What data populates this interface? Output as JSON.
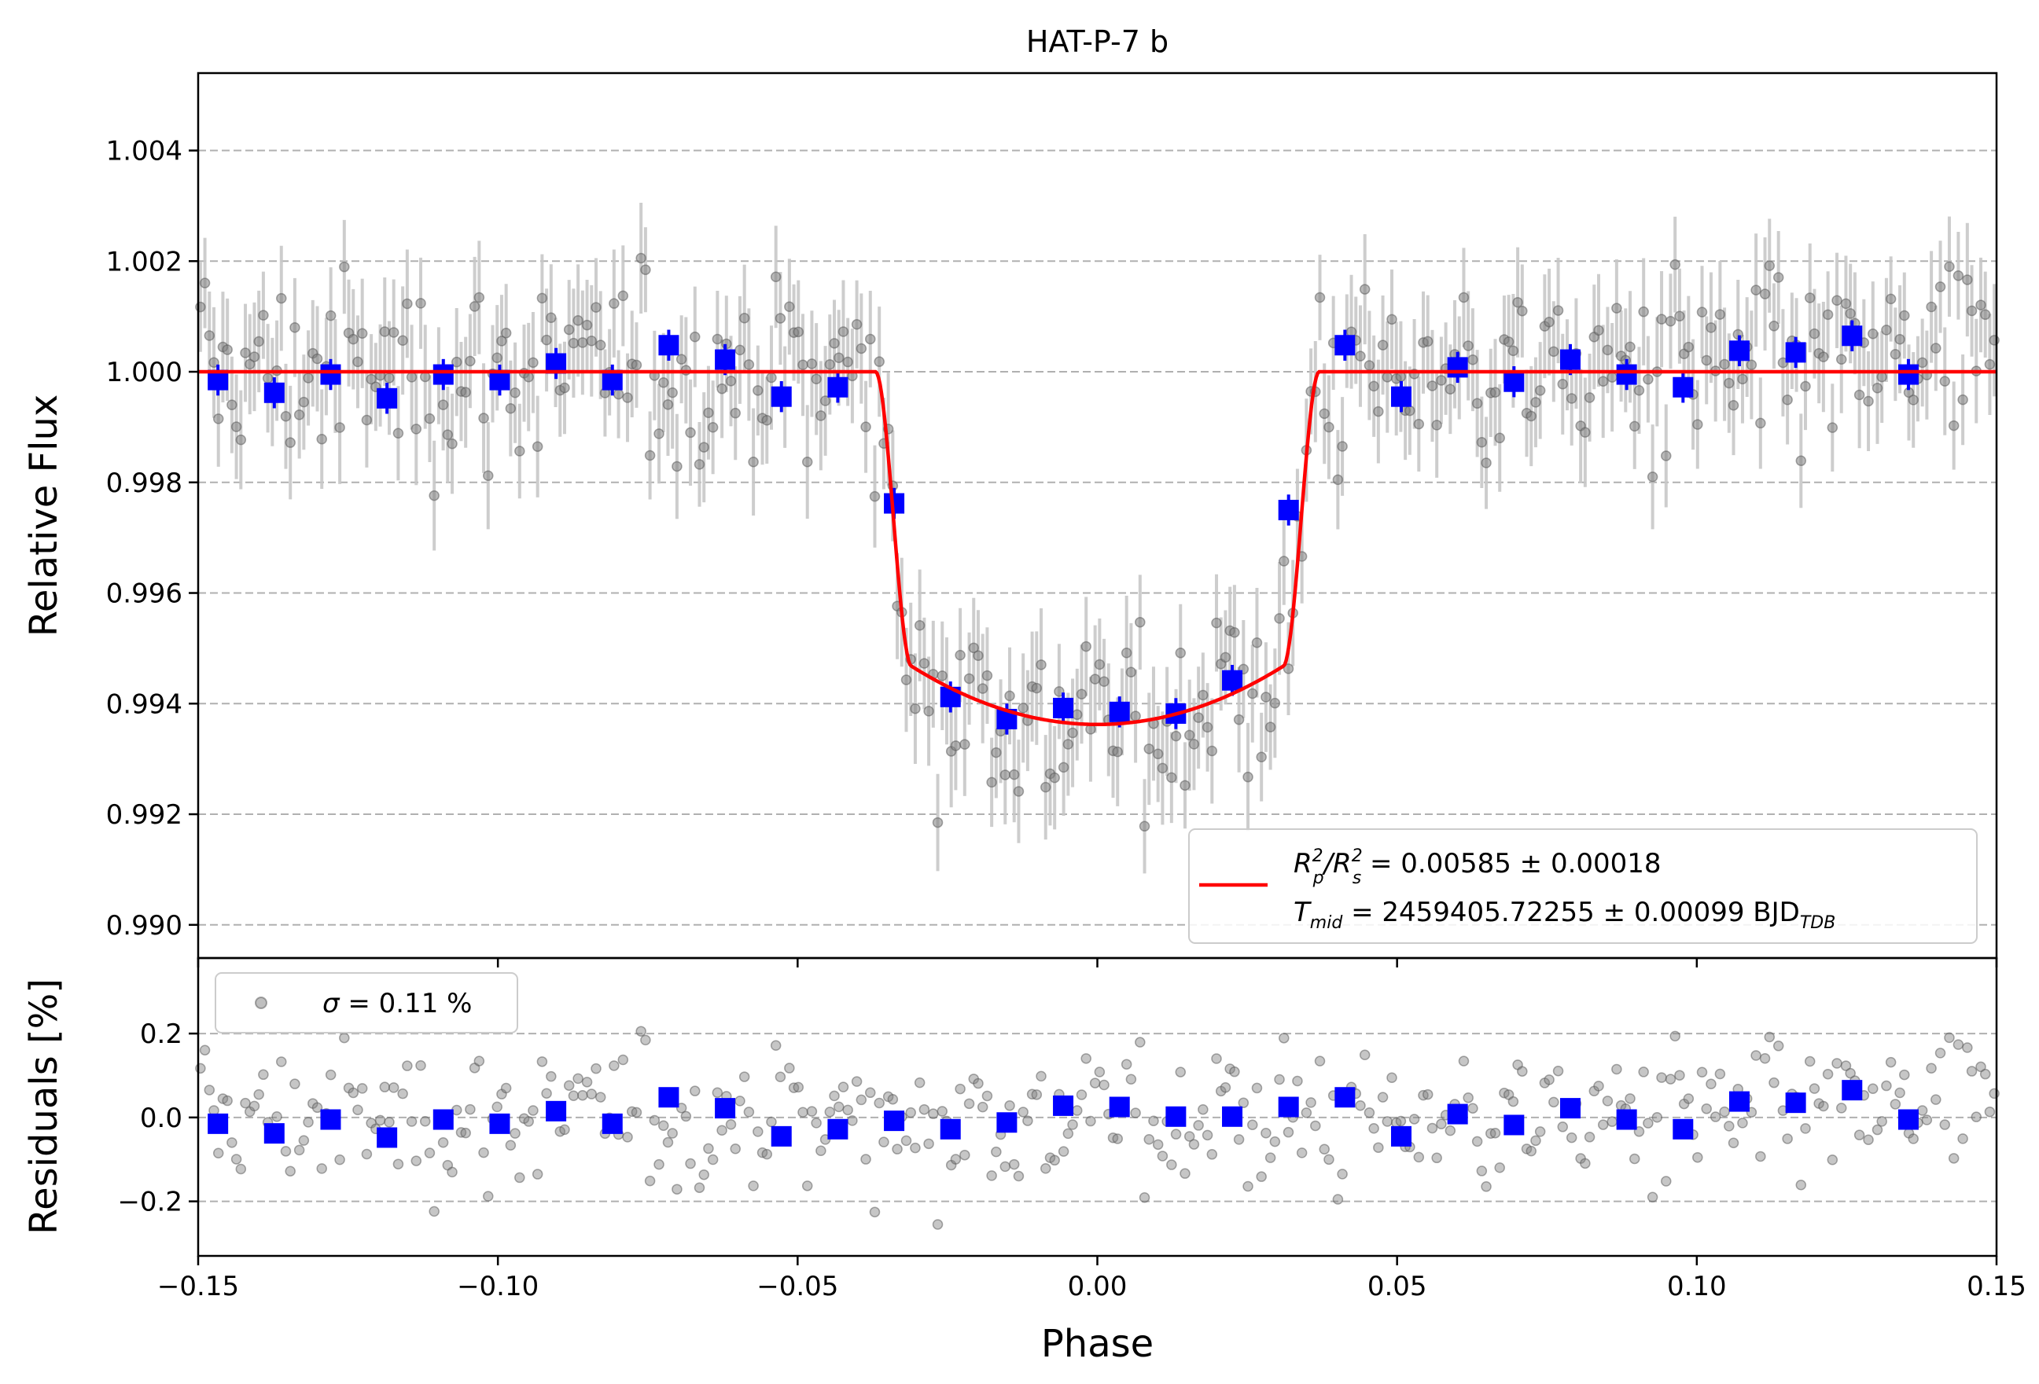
{
  "chart_data": [
    {
      "type": "scatter",
      "title": "HAT-P-7 b",
      "xlabel": "",
      "ylabel": "Relative Flux",
      "xlim": [
        -0.15,
        0.15
      ],
      "ylim": [
        0.9894,
        1.0054
      ],
      "yticks": [
        0.99,
        0.992,
        0.994,
        0.996,
        0.998,
        1.0,
        1.002,
        1.004
      ],
      "ytick_labels": [
        "0.990",
        "0.992",
        "0.994",
        "0.996",
        "0.998",
        "1.000",
        "1.002",
        "1.004"
      ],
      "grid": "horizontal dashed",
      "legend_position": "lower-right",
      "legend": {
        "rp_prefix": "R",
        "rp_sup": "2",
        "rp_sub": "p",
        "rs_prefix": "/R",
        "rs_sup": "2",
        "rs_sub": "s",
        "rp_value": " = 0.00585 ± 0.00018",
        "t_prefix": "T",
        "t_sub": "mid",
        "t_value": " = 2459405.72255 ± 0.00099 BJD",
        "t_unit_sub": "TDB"
      },
      "model": {
        "color": "#ff0000",
        "depth": 0.00585,
        "t_mid_phase": 0.0,
        "ingress_start": -0.037,
        "ingress_end": -0.031,
        "egress_start": 0.031,
        "egress_end": 0.037
      },
      "raw_series": {
        "color": "#808080",
        "errorbar_color": "#c8c8c8",
        "typical_error": 0.0009,
        "scatter": 0.0011,
        "n_points": 400
      },
      "binned_series": {
        "color": "#0000ff",
        "x": [
          -0.1467,
          -0.1373,
          -0.1279,
          -0.1185,
          -0.1091,
          -0.0997,
          -0.0903,
          -0.0809,
          -0.0715,
          -0.0621,
          -0.0527,
          -0.0433,
          -0.0339,
          -0.0245,
          -0.0151,
          -0.0057,
          0.0037,
          0.0131,
          0.0225,
          0.0319,
          0.0413,
          0.0507,
          0.0601,
          0.0695,
          0.0789,
          0.0883,
          0.0977,
          0.1071,
          0.1165,
          0.1259,
          0.1353
        ],
        "y": [
          0.99985,
          0.99962,
          0.99995,
          0.99952,
          0.99995,
          0.99985,
          1.00015,
          0.99985,
          1.00048,
          1.00022,
          0.99955,
          0.99972,
          0.99762,
          0.99412,
          0.99372,
          0.99392,
          0.99385,
          0.99382,
          0.99442,
          0.9975,
          1.00048,
          0.99955,
          1.00008,
          0.99982,
          1.00022,
          0.99995,
          0.99972,
          1.00038,
          1.00035,
          1.00065,
          0.99995
        ]
      }
    },
    {
      "type": "scatter",
      "title": "",
      "xlabel": "Phase",
      "ylabel": "Residuals [%]",
      "xlim": [
        -0.15,
        0.15
      ],
      "ylim": [
        -0.33,
        0.38
      ],
      "xticks": [
        -0.15,
        -0.1,
        -0.05,
        0.0,
        0.05,
        0.1,
        0.15
      ],
      "xtick_labels": [
        "−0.15",
        "−0.10",
        "−0.05",
        "0.00",
        "0.05",
        "0.10",
        "0.15"
      ],
      "yticks": [
        -0.2,
        0.0,
        0.2
      ],
      "ytick_labels": [
        "−0.2",
        "0.0",
        "0.2"
      ],
      "grid": "horizontal dashed",
      "legend_position": "top-left",
      "legend": {
        "sigma_symbol": "σ",
        "sigma_value": " = 0.11 %"
      },
      "binned_series": {
        "color": "#0000ff",
        "y": [
          -0.015,
          -0.038,
          -0.005,
          -0.048,
          -0.005,
          -0.015,
          0.015,
          -0.015,
          0.048,
          0.022,
          -0.045,
          -0.028,
          -0.008,
          -0.028,
          -0.012,
          0.028,
          0.025,
          0.002,
          0.002,
          0.025,
          0.048,
          -0.045,
          0.008,
          -0.018,
          0.022,
          -0.005,
          -0.028,
          0.038,
          0.035,
          0.065,
          -0.005
        ]
      }
    }
  ]
}
